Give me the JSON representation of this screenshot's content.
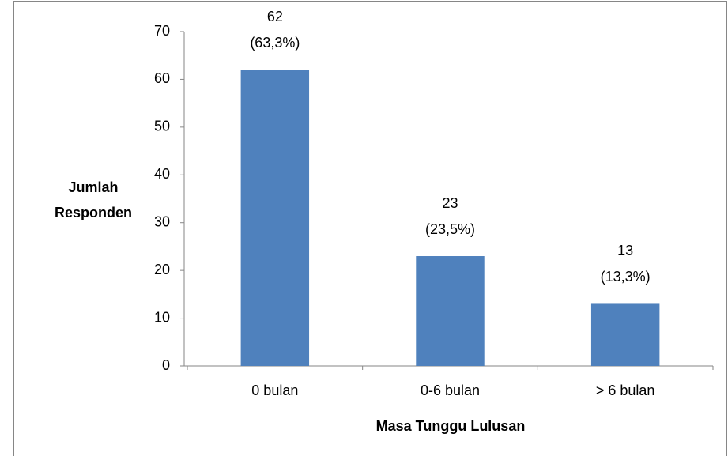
{
  "chart_data": {
    "type": "bar",
    "categories": [
      "0 bulan",
      "0-6 bulan",
      "> 6 bulan"
    ],
    "values": [
      62,
      23,
      13
    ],
    "percent_labels": [
      "(63,3%)",
      "(23,5%)",
      "(13,3%)"
    ],
    "color": "#4f81bd",
    "ylim": [
      0,
      70
    ],
    "yticks": [
      0,
      10,
      20,
      30,
      40,
      50,
      60,
      70
    ],
    "y_label": [
      "Jumlah",
      "Responden"
    ],
    "x_label": "Masa Tunggu Lulusan",
    "grid": false
  }
}
